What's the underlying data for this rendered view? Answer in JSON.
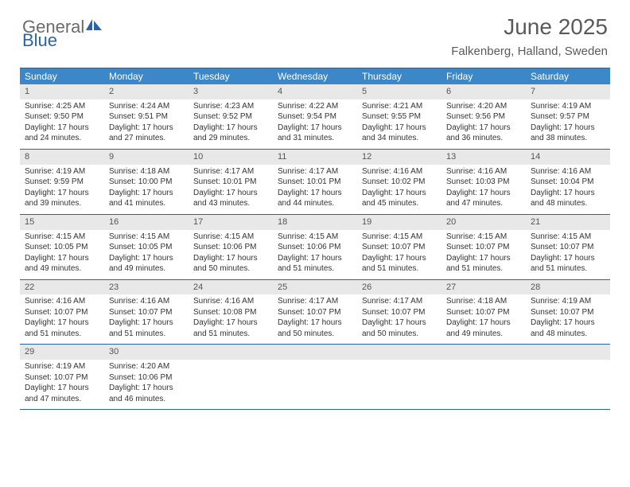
{
  "brand": {
    "word1": "General",
    "word2": "Blue",
    "word1_color": "#6b6b6b",
    "word2_color": "#2a64a8",
    "sail_color": "#2a64a8"
  },
  "title": "June 2025",
  "location": "Falkenberg, Halland, Sweden",
  "colors": {
    "header_bg": "#3b87c8",
    "header_text": "#ffffff",
    "rule": "#2a64a8",
    "daynum_bg": "#e8e8e8",
    "daynum_text": "#555555",
    "body_text": "#333333"
  },
  "weekdays": [
    "Sunday",
    "Monday",
    "Tuesday",
    "Wednesday",
    "Thursday",
    "Friday",
    "Saturday"
  ],
  "days": [
    {
      "n": 1,
      "sunrise": "4:25 AM",
      "sunset": "9:50 PM",
      "daylight": "17 hours and 24 minutes."
    },
    {
      "n": 2,
      "sunrise": "4:24 AM",
      "sunset": "9:51 PM",
      "daylight": "17 hours and 27 minutes."
    },
    {
      "n": 3,
      "sunrise": "4:23 AM",
      "sunset": "9:52 PM",
      "daylight": "17 hours and 29 minutes."
    },
    {
      "n": 4,
      "sunrise": "4:22 AM",
      "sunset": "9:54 PM",
      "daylight": "17 hours and 31 minutes."
    },
    {
      "n": 5,
      "sunrise": "4:21 AM",
      "sunset": "9:55 PM",
      "daylight": "17 hours and 34 minutes."
    },
    {
      "n": 6,
      "sunrise": "4:20 AM",
      "sunset": "9:56 PM",
      "daylight": "17 hours and 36 minutes."
    },
    {
      "n": 7,
      "sunrise": "4:19 AM",
      "sunset": "9:57 PM",
      "daylight": "17 hours and 38 minutes."
    },
    {
      "n": 8,
      "sunrise": "4:19 AM",
      "sunset": "9:59 PM",
      "daylight": "17 hours and 39 minutes."
    },
    {
      "n": 9,
      "sunrise": "4:18 AM",
      "sunset": "10:00 PM",
      "daylight": "17 hours and 41 minutes."
    },
    {
      "n": 10,
      "sunrise": "4:17 AM",
      "sunset": "10:01 PM",
      "daylight": "17 hours and 43 minutes."
    },
    {
      "n": 11,
      "sunrise": "4:17 AM",
      "sunset": "10:01 PM",
      "daylight": "17 hours and 44 minutes."
    },
    {
      "n": 12,
      "sunrise": "4:16 AM",
      "sunset": "10:02 PM",
      "daylight": "17 hours and 45 minutes."
    },
    {
      "n": 13,
      "sunrise": "4:16 AM",
      "sunset": "10:03 PM",
      "daylight": "17 hours and 47 minutes."
    },
    {
      "n": 14,
      "sunrise": "4:16 AM",
      "sunset": "10:04 PM",
      "daylight": "17 hours and 48 minutes."
    },
    {
      "n": 15,
      "sunrise": "4:15 AM",
      "sunset": "10:05 PM",
      "daylight": "17 hours and 49 minutes."
    },
    {
      "n": 16,
      "sunrise": "4:15 AM",
      "sunset": "10:05 PM",
      "daylight": "17 hours and 49 minutes."
    },
    {
      "n": 17,
      "sunrise": "4:15 AM",
      "sunset": "10:06 PM",
      "daylight": "17 hours and 50 minutes."
    },
    {
      "n": 18,
      "sunrise": "4:15 AM",
      "sunset": "10:06 PM",
      "daylight": "17 hours and 51 minutes."
    },
    {
      "n": 19,
      "sunrise": "4:15 AM",
      "sunset": "10:07 PM",
      "daylight": "17 hours and 51 minutes."
    },
    {
      "n": 20,
      "sunrise": "4:15 AM",
      "sunset": "10:07 PM",
      "daylight": "17 hours and 51 minutes."
    },
    {
      "n": 21,
      "sunrise": "4:15 AM",
      "sunset": "10:07 PM",
      "daylight": "17 hours and 51 minutes."
    },
    {
      "n": 22,
      "sunrise": "4:16 AM",
      "sunset": "10:07 PM",
      "daylight": "17 hours and 51 minutes."
    },
    {
      "n": 23,
      "sunrise": "4:16 AM",
      "sunset": "10:07 PM",
      "daylight": "17 hours and 51 minutes."
    },
    {
      "n": 24,
      "sunrise": "4:16 AM",
      "sunset": "10:08 PM",
      "daylight": "17 hours and 51 minutes."
    },
    {
      "n": 25,
      "sunrise": "4:17 AM",
      "sunset": "10:07 PM",
      "daylight": "17 hours and 50 minutes."
    },
    {
      "n": 26,
      "sunrise": "4:17 AM",
      "sunset": "10:07 PM",
      "daylight": "17 hours and 50 minutes."
    },
    {
      "n": 27,
      "sunrise": "4:18 AM",
      "sunset": "10:07 PM",
      "daylight": "17 hours and 49 minutes."
    },
    {
      "n": 28,
      "sunrise": "4:19 AM",
      "sunset": "10:07 PM",
      "daylight": "17 hours and 48 minutes."
    },
    {
      "n": 29,
      "sunrise": "4:19 AM",
      "sunset": "10:07 PM",
      "daylight": "17 hours and 47 minutes."
    },
    {
      "n": 30,
      "sunrise": "4:20 AM",
      "sunset": "10:06 PM",
      "daylight": "17 hours and 46 minutes."
    }
  ],
  "labels": {
    "sunrise": "Sunrise: ",
    "sunset": "Sunset: ",
    "daylight": "Daylight: "
  },
  "layout": {
    "first_weekday_offset": 0,
    "total_cells": 35
  }
}
